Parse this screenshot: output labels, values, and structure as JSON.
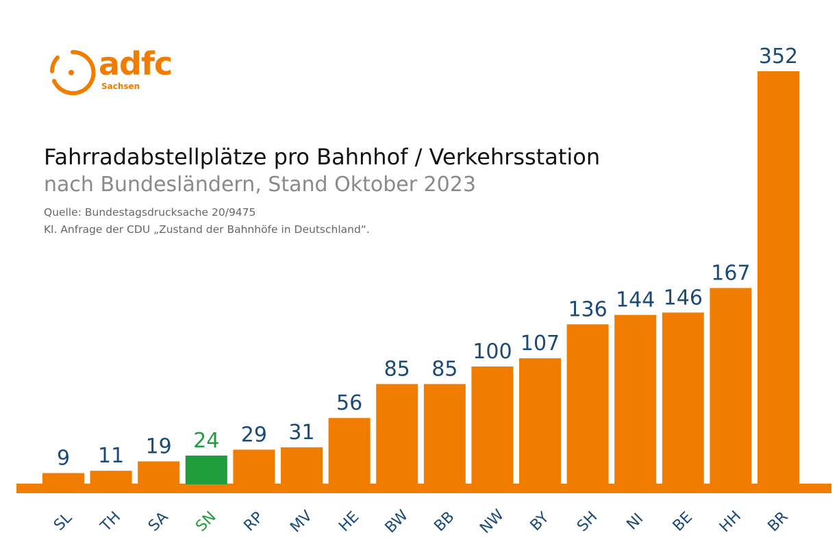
{
  "logo": {
    "word": "adfc",
    "sub": "Sachsen",
    "color": "#f07d00"
  },
  "header": {
    "title": "Fahrradabstellplätze pro Bahnhof / Verkehrsstation",
    "subtitle": "nach Bundesländern, Stand Oktober 2023",
    "source_line1": "Quelle: Bundestagsdrucksache 20/9475",
    "source_line2": "Kl. Anfrage der CDU „Zustand der Bahnhöfe in Deutschland“."
  },
  "colors": {
    "bar": "#f07d00",
    "highlight_bar": "#1e9e3c",
    "value_label": "#1a4a7a",
    "highlight_label": "#1e9e3c",
    "baseline": "#f07d00"
  },
  "chart_data": {
    "type": "bar",
    "title": "Fahrradabstellplätze pro Bahnhof / Verkehrsstation",
    "subtitle": "nach Bundesländern, Stand Oktober 2023",
    "categories": [
      "SL",
      "TH",
      "SA",
      "SN",
      "RP",
      "MV",
      "HE",
      "BW",
      "BB",
      "NW",
      "BY",
      "SH",
      "NI",
      "BE",
      "HH",
      "BR"
    ],
    "values": [
      9,
      11,
      19,
      24,
      29,
      31,
      56,
      85,
      85,
      100,
      107,
      136,
      144,
      146,
      167,
      352
    ],
    "highlight": "SN",
    "ylim": [
      0,
      352
    ],
    "grid": false,
    "legend": false
  }
}
